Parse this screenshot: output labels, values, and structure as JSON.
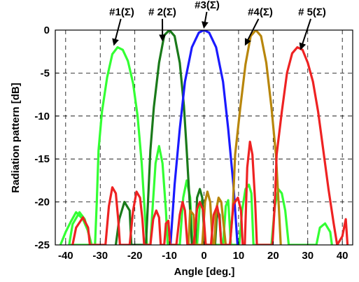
{
  "chart_data": {
    "type": "line",
    "xlabel": "Angle [deg.]",
    "ylabel": "Radiation pattern [dB]",
    "xlim": [
      -43,
      43
    ],
    "ylim": [
      -25,
      0
    ],
    "xticks": [
      -40,
      -30,
      -20,
      -10,
      0,
      10,
      20,
      30,
      40
    ],
    "yticks": [
      0,
      -5,
      -10,
      -15,
      -20,
      -25
    ],
    "grid": true,
    "series": [
      {
        "name": "#1(Σ)",
        "color": "#33ff33",
        "points": [
          [
            -41.5,
            -25
          ],
          [
            -40,
            -23.5
          ],
          [
            -38.5,
            -22.3
          ],
          [
            -37,
            -21.2
          ],
          [
            -35,
            -22
          ],
          [
            -33.5,
            -23.4
          ],
          [
            -32.5,
            -25
          ],
          [
            -34.5,
            -22
          ],
          [
            -36,
            -21.2
          ],
          [
            -38,
            -22.6
          ],
          [
            -39,
            -25
          ],
          [
            -31.5,
            -25
          ],
          [
            -31,
            -20
          ],
          [
            -30.5,
            -14
          ],
          [
            -29.5,
            -9.5
          ],
          [
            -28,
            -5.5
          ],
          [
            -26.5,
            -2.8
          ],
          [
            -25,
            -2
          ],
          [
            -23.5,
            -2.3
          ],
          [
            -22,
            -3.6
          ],
          [
            -20.5,
            -6.2
          ],
          [
            -19.2,
            -10
          ],
          [
            -18,
            -15.5
          ],
          [
            -17,
            -22
          ],
          [
            -16.5,
            -25
          ],
          [
            -15.5,
            -25
          ],
          [
            -15,
            -21.5
          ],
          [
            -14,
            -15.5
          ],
          [
            -13,
            -13.5
          ],
          [
            -12,
            -15.5
          ],
          [
            -11,
            -21
          ],
          [
            -10.5,
            -25
          ],
          [
            -7,
            -25
          ],
          [
            -6,
            -19.5
          ],
          [
            -5,
            -17.5
          ],
          [
            -4,
            -19.5
          ],
          [
            -3.3,
            -25
          ],
          [
            -2,
            -25
          ],
          [
            -1.2,
            -20.3
          ],
          [
            -0.5,
            -19.8
          ],
          [
            0.3,
            -25
          ],
          [
            5.5,
            -25
          ],
          [
            6.3,
            -20.5
          ],
          [
            7,
            -19.8
          ],
          [
            7.8,
            -25
          ],
          [
            10.2,
            -25
          ],
          [
            11,
            -21
          ],
          [
            12,
            -18.5
          ],
          [
            13,
            -18
          ],
          [
            13.7,
            -19
          ],
          [
            14.3,
            -25
          ],
          [
            19.5,
            -25
          ],
          [
            20.5,
            -20.5
          ],
          [
            21.5,
            -18.5
          ],
          [
            22.5,
            -19
          ],
          [
            23.5,
            -21
          ],
          [
            24.5,
            -25
          ],
          [
            32.5,
            -25
          ],
          [
            33.5,
            -23
          ],
          [
            35,
            -22.5
          ],
          [
            36.5,
            -23.5
          ],
          [
            37,
            -25
          ]
        ]
      },
      {
        "name": "# 2(Σ)",
        "color": "#1a7a1a",
        "points": [
          [
            -25.5,
            -25
          ],
          [
            -24.5,
            -22
          ],
          [
            -23,
            -20
          ],
          [
            -21.5,
            -21
          ],
          [
            -21,
            -25
          ],
          [
            -16.8,
            -25
          ],
          [
            -16.3,
            -21
          ],
          [
            -15.5,
            -14
          ],
          [
            -14.5,
            -9
          ],
          [
            -13,
            -3.8
          ],
          [
            -11.5,
            -0.6
          ],
          [
            -10,
            0
          ],
          [
            -8.5,
            -0.7
          ],
          [
            -7,
            -3.8
          ],
          [
            -5.8,
            -8.8
          ],
          [
            -5,
            -14
          ],
          [
            -4,
            -21
          ],
          [
            -3.5,
            -25
          ],
          [
            -2.5,
            -25
          ],
          [
            -2,
            -19.5
          ],
          [
            -1.2,
            -18.5
          ],
          [
            -0.5,
            -19.5
          ],
          [
            0.2,
            -25
          ],
          [
            3.2,
            -25
          ],
          [
            3.8,
            -21
          ],
          [
            4.5,
            -21.5
          ],
          [
            5,
            -25
          ]
        ]
      },
      {
        "name": "#3(Σ)",
        "color": "#1a1aff",
        "points": [
          [
            -9.7,
            -25
          ],
          [
            -8.5,
            -18
          ],
          [
            -7,
            -11.5
          ],
          [
            -5.5,
            -6
          ],
          [
            -3.5,
            -2
          ],
          [
            -1.5,
            -0.3
          ],
          [
            0,
            0
          ],
          [
            1.5,
            -0.3
          ],
          [
            3.5,
            -2
          ],
          [
            5.5,
            -6
          ],
          [
            7,
            -11.5
          ],
          [
            8.5,
            -18
          ],
          [
            9.7,
            -25
          ]
        ]
      },
      {
        "name": "#4(Σ)",
        "color": "#b8860b",
        "points": [
          [
            -4.5,
            -25
          ],
          [
            -4,
            -21
          ],
          [
            -3,
            -21.5
          ],
          [
            -2.6,
            -25
          ],
          [
            -0.5,
            -25
          ],
          [
            0.3,
            -20
          ],
          [
            1,
            -18.8
          ],
          [
            1.8,
            -20
          ],
          [
            2.5,
            -25
          ],
          [
            3,
            -25
          ],
          [
            3.5,
            -21
          ],
          [
            4.2,
            -19.5
          ],
          [
            5,
            -20
          ],
          [
            5.5,
            -22
          ],
          [
            6.3,
            -25
          ],
          [
            7.5,
            -25
          ],
          [
            8.3,
            -21
          ],
          [
            9,
            -14.5
          ],
          [
            10.5,
            -9
          ],
          [
            12,
            -4
          ],
          [
            13.5,
            -0.7
          ],
          [
            15,
            0
          ],
          [
            16.5,
            -0.7
          ],
          [
            18,
            -3.8
          ],
          [
            19.5,
            -9
          ],
          [
            20.8,
            -14.5
          ],
          [
            21.7,
            -21
          ],
          [
            22.2,
            -25
          ]
        ]
      },
      {
        "name": "# 5(Σ)",
        "color": "#ee2222",
        "points": [
          [
            -38,
            -25
          ],
          [
            -37,
            -23
          ],
          [
            -35,
            -21.8
          ],
          [
            -33.5,
            -23
          ],
          [
            -33,
            -25
          ],
          [
            -28.5,
            -25
          ],
          [
            -27.5,
            -20.5
          ],
          [
            -26.5,
            -18.3
          ],
          [
            -25.5,
            -19
          ],
          [
            -24.8,
            -22
          ],
          [
            -24.3,
            -25
          ],
          [
            -21.5,
            -25
          ],
          [
            -20.5,
            -21
          ],
          [
            -19.5,
            -18.8
          ],
          [
            -18.5,
            -19.5
          ],
          [
            -17.8,
            -22
          ],
          [
            -17.3,
            -25
          ],
          [
            -15.5,
            -25
          ],
          [
            -14.7,
            -22
          ],
          [
            -13.8,
            -21
          ],
          [
            -13,
            -21.8
          ],
          [
            -12.5,
            -25
          ],
          [
            -11.5,
            -25
          ],
          [
            -11,
            -22.5
          ],
          [
            -10.3,
            -22.2
          ],
          [
            -9.8,
            -25
          ],
          [
            -8,
            -25
          ],
          [
            -7,
            -21.5
          ],
          [
            -6.2,
            -20
          ],
          [
            -5.5,
            -21
          ],
          [
            -4.8,
            -25
          ],
          [
            -3,
            -25
          ],
          [
            -2,
            -20.8
          ],
          [
            -1.2,
            -20
          ],
          [
            -0.2,
            -21
          ],
          [
            0.5,
            -25
          ],
          [
            2,
            -25
          ],
          [
            2.8,
            -21.5
          ],
          [
            3.8,
            -20.5
          ],
          [
            4.5,
            -22
          ],
          [
            5,
            -25
          ],
          [
            7.5,
            -25
          ],
          [
            8.5,
            -20.3
          ],
          [
            9.8,
            -19.5
          ],
          [
            10.7,
            -21
          ],
          [
            11.2,
            -25
          ],
          [
            11.8,
            -25
          ],
          [
            12.5,
            -16
          ],
          [
            13.3,
            -13
          ],
          [
            14,
            -14.5
          ],
          [
            14.8,
            -20
          ],
          [
            15.3,
            -25
          ],
          [
            19.8,
            -25
          ],
          [
            20.5,
            -20
          ],
          [
            21,
            -14.5
          ],
          [
            22.5,
            -9.5
          ],
          [
            24,
            -5
          ],
          [
            25.5,
            -2.7
          ],
          [
            27,
            -2
          ],
          [
            28.5,
            -2.3
          ],
          [
            30,
            -3.8
          ],
          [
            31.5,
            -6
          ],
          [
            33,
            -9.5
          ],
          [
            34.5,
            -14
          ],
          [
            36,
            -18.5
          ],
          [
            37.5,
            -22.5
          ],
          [
            38.5,
            -25
          ],
          [
            40,
            -24
          ],
          [
            41,
            -22
          ],
          [
            41.5,
            -25
          ]
        ]
      }
    ],
    "annotations": [
      {
        "text": "#1(Σ)",
        "target_x": -26,
        "target_y": -2
      },
      {
        "text": "# 2(Σ)",
        "target_x": -12,
        "target_y": -1.5
      },
      {
        "text": "#3(Σ)",
        "target_x": 0,
        "target_y": 0
      },
      {
        "text": "#4(Σ)",
        "target_x": 12,
        "target_y": -2
      },
      {
        "text": "# 5(Σ)",
        "target_x": 28,
        "target_y": -2.5
      }
    ]
  }
}
